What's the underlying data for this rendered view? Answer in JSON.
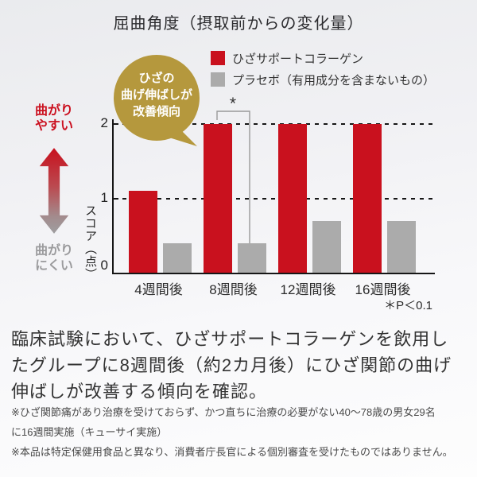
{
  "title": "屈曲角度（摂取前からの変化量）",
  "badge": {
    "text": "ひざの\n曲げ伸ばしが\n改善傾向",
    "color": "#b5983d"
  },
  "legend": [
    {
      "label": "ひざサポートコラーゲン",
      "color": "#c9111e"
    },
    {
      "label": "プラセボ（有用成分を含まないもの）",
      "color": "#ababab"
    }
  ],
  "axis_annotations": {
    "top": "曲がり\nやすい",
    "bottom": "曲がり\nにくい"
  },
  "chart_data": {
    "type": "bar",
    "title": "屈曲角度（摂取前からの変化量）",
    "categories": [
      "4週間後",
      "8週間後",
      "12週間後",
      "16週間後"
    ],
    "series": [
      {
        "name": "ひざサポートコラーゲン",
        "color": "#c9111e",
        "values": [
          1.1,
          2.0,
          2.0,
          2.0
        ]
      },
      {
        "name": "プラセボ（有用成分を含まないもの）",
        "color": "#ababab",
        "values": [
          0.4,
          0.4,
          0.7,
          0.7
        ]
      }
    ],
    "ylabel": "スコア（点）",
    "yticks": [
      0,
      1,
      2
    ],
    "ylim": [
      0,
      2.07
    ],
    "grid": "dashed horizontal at 1 and 2",
    "gridlines_dashed": [
      1,
      2
    ],
    "legend_position": "top-right",
    "significance": {
      "symbol": "*",
      "between": [
        "8週間後 ひざサポートコラーゲン",
        "8週間後 プラセボ"
      ],
      "note": "＊P＜0.1"
    }
  },
  "colors": {
    "accent_red": "#c9111e",
    "placebo_gray": "#ababab",
    "badge_gold": "#b5983d",
    "arrow_top": "#c8101d",
    "arrow_bottom": "#9e9ea0",
    "axis_black": "#161616"
  },
  "body_text": "臨床試験において、ひざサポートコラーゲンを飲用し\nたグループに8週間後（約2カ月後）にひざ関節の曲げ\n伸ばしが改善する傾向を確認。",
  "footnotes": [
    "※ひざ関節痛があり治療を受けておらず、かつ直ちに治療の必要がない40～78歳の男女29名\nに16週間実施（キューサイ実施）",
    "※本品は特定保健用食品と異なり、消費者庁長官による個別審査を受けたものではありません。"
  ]
}
